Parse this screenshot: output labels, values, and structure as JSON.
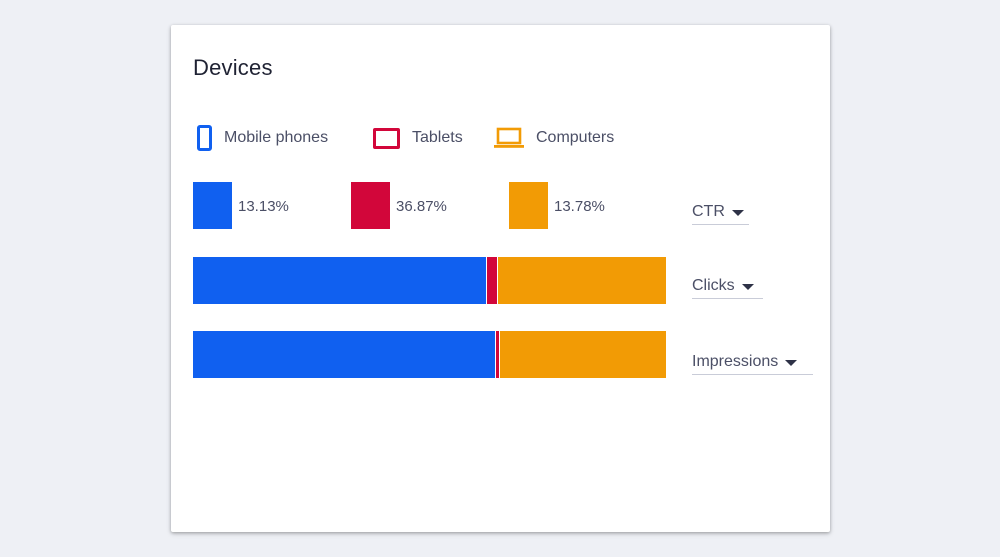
{
  "card": {
    "title": "Devices"
  },
  "legend": {
    "mobile": {
      "label": "Mobile phones",
      "icon": "phone-icon",
      "color": "#1060f0"
    },
    "tablet": {
      "label": "Tablets",
      "icon": "tablet-icon",
      "color": "#d2063a"
    },
    "computer": {
      "label": "Computers",
      "icon": "laptop-icon",
      "color": "#f29b05"
    }
  },
  "ctr": {
    "mobile": "13.13%",
    "tablet": "36.87%",
    "computer": "13.78%"
  },
  "metrics": {
    "ctr_label": "CTR",
    "clicks_label": "Clicks",
    "impressions_label": "Impressions"
  },
  "bars": {
    "clicks": {
      "mobile": 62.2,
      "tablet": 2.1,
      "computer": 35.7
    },
    "impressions": {
      "mobile": 64.2,
      "tablet": 0.6,
      "computer": 35.2
    }
  }
}
